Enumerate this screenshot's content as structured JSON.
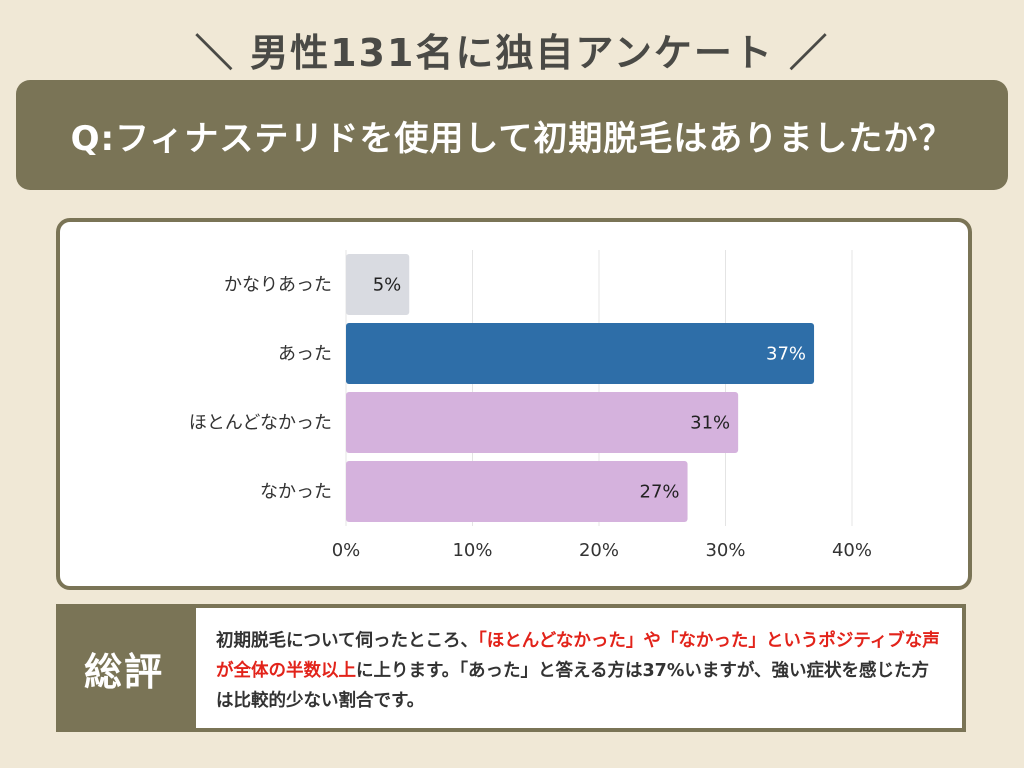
{
  "survey_heading": "＼ 男性131名に独自アンケート ／",
  "question": "Q:フィナステリドを使用して初期脱毛はありましたか？",
  "colors": {
    "banner": "#7a7456",
    "bar_light_gray": "#d9dbe1",
    "bar_blue": "#2e6ea8",
    "bar_purple": "#d5b2dd",
    "highlight_red": "#e2231a"
  },
  "chart_data": {
    "type": "bar",
    "orientation": "horizontal",
    "categories": [
      "かなりあった",
      "あった",
      "ほとんどなかった",
      "なかった"
    ],
    "values": [
      5,
      37,
      31,
      27
    ],
    "value_labels": [
      "5%",
      "37%",
      "31%",
      "27%"
    ],
    "bar_colors": [
      "#d9dbe1",
      "#2e6ea8",
      "#d5b2dd",
      "#d5b2dd"
    ],
    "label_colors": [
      "#222222",
      "#ffffff",
      "#222222",
      "#222222"
    ],
    "xlim": [
      0,
      40
    ],
    "xticks": [
      "0%",
      "10%",
      "20%",
      "30%",
      "40%"
    ],
    "grid": true,
    "title": "",
    "xlabel": "",
    "ylabel": ""
  },
  "summary": {
    "title": "総評",
    "text_1": "初期脱毛について伺ったところ、",
    "highlight_1": "「ほとんどなかった」",
    "text_2": "や",
    "highlight_2": "「なかった」というポジティブな声が全体の半数以上",
    "text_3": "に上ります。「あった」と答える方は37%いますが、強い症状を感じた方は比較的少ない割合です。"
  }
}
